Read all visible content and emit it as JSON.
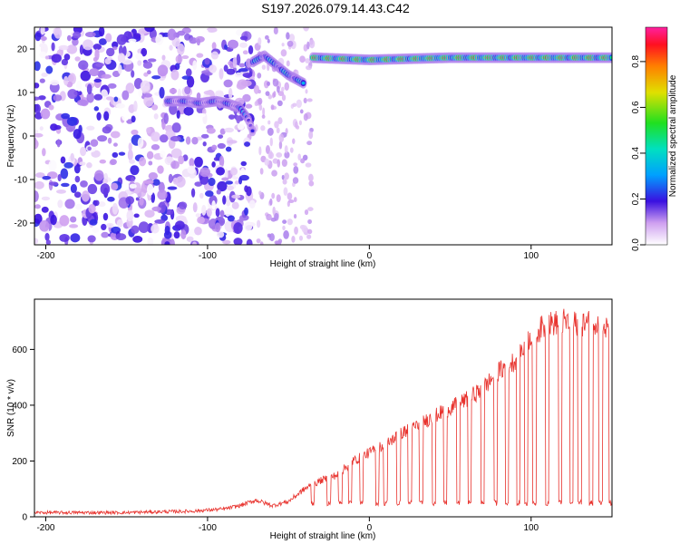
{
  "chart_data": [
    {
      "type": "heatmap",
      "title": "S197.2026.079.14.43.C42",
      "xlabel": "Height of straight line (km)",
      "ylabel": "Frequency (Hz)",
      "xlim": [
        -207,
        150
      ],
      "ylim": [
        -25,
        25
      ],
      "xticks": [
        -200,
        -100,
        0,
        100
      ],
      "yticks": [
        -20,
        -10,
        0,
        10,
        20
      ],
      "grid": false,
      "colorbar": {
        "label": "Normalized spectral amplitude",
        "range": [
          0,
          0.95
        ],
        "ticks": [
          0.0,
          0.2,
          0.4,
          0.6,
          0.8
        ],
        "colormap": "white-violet-blue-cyan-green-yellow-orange-red-magenta"
      },
      "features": [
        {
          "segment": "left trace",
          "x": [
            -125,
            -115,
            -105,
            -95,
            -88,
            -80,
            -75,
            -72
          ],
          "y": [
            8,
            8,
            7.5,
            8,
            7.5,
            6.5,
            4,
            1
          ],
          "amplitude": 0.3
        },
        {
          "segment": "ramp",
          "x": [
            -72,
            -65,
            -60,
            -55,
            -50,
            -45,
            -40
          ],
          "y": [
            17,
            18.5,
            17,
            15.5,
            14,
            13,
            12
          ],
          "amplitude": 0.4
        },
        {
          "segment": "steady line",
          "x": [
            -35,
            0,
            50,
            100,
            150
          ],
          "y": [
            18,
            17.5,
            18,
            18,
            18
          ],
          "amplitude": 0.85
        }
      ]
    },
    {
      "type": "line",
      "xlabel": "Height of straight line (km)",
      "ylabel": "SNR (10 * v/v)",
      "xlim": [
        -207,
        150
      ],
      "ylim": [
        0,
        780
      ],
      "xticks": [
        -200,
        -100,
        0,
        100
      ],
      "yticks": [
        0,
        200,
        400,
        600
      ],
      "grid": false,
      "series": [
        {
          "color": "#e8322d",
          "x": [
            -207,
            -190,
            -170,
            -150,
            -130,
            -110,
            -90,
            -80,
            -70,
            -60,
            -50,
            -40,
            -30,
            -20,
            -10,
            0,
            10,
            20,
            30,
            40,
            50,
            60,
            70,
            80,
            90,
            100,
            110,
            120,
            130,
            140,
            150
          ],
          "y": [
            15,
            15,
            15,
            15,
            18,
            20,
            28,
            40,
            60,
            40,
            55,
            100,
            130,
            150,
            200,
            230,
            260,
            300,
            330,
            360,
            390,
            420,
            460,
            520,
            560,
            650,
            690,
            700,
            690,
            700,
            660
          ],
          "dropouts_x": [
            -35,
            -25,
            -18,
            -12,
            -5,
            5,
            10,
            18,
            25,
            32,
            40,
            47,
            55,
            62,
            70,
            78,
            85,
            92,
            97,
            102,
            110,
            118,
            125,
            130,
            137,
            143,
            149
          ],
          "dropout_floor": 40
        }
      ]
    }
  ]
}
